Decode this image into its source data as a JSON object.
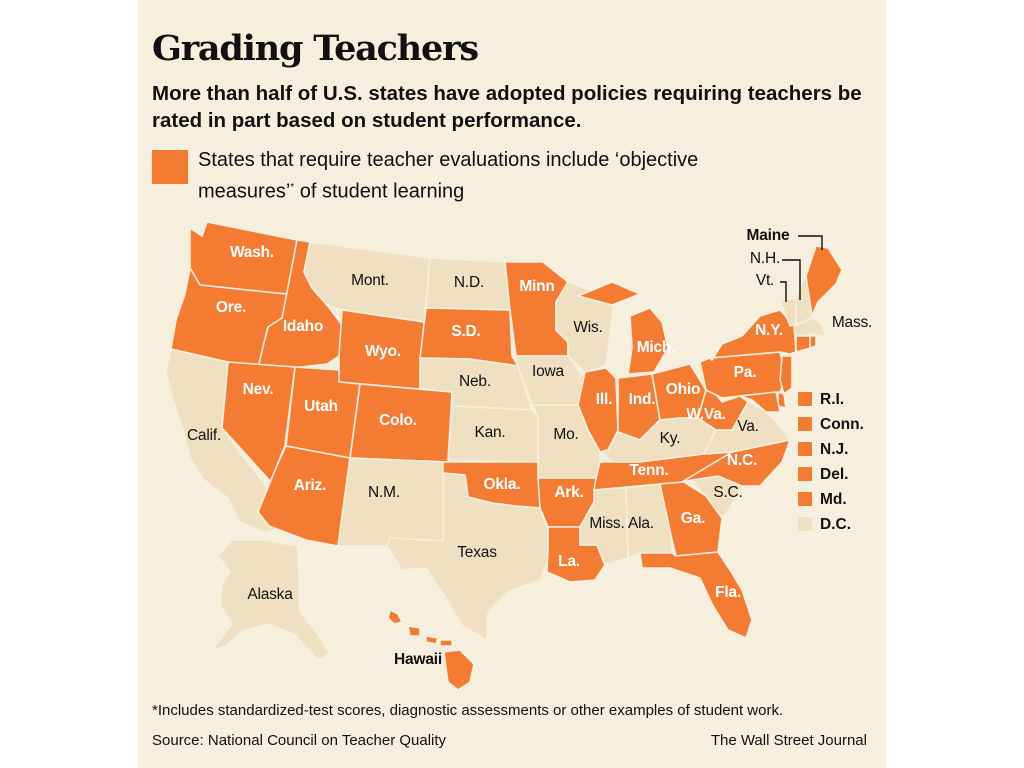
{
  "title": "Grading Teachers",
  "subtitle": "More than half of U.S. states have adopted policies requiring teachers be rated in part based on student performance.",
  "legend": {
    "label_before": "States that require teacher evaluations include ‘objective measures’",
    "marker": "*",
    "label_after": " of student learning",
    "color": "#f47b32"
  },
  "colors": {
    "required": "#f47b32",
    "not_required": "#efe0c2",
    "background": "#f7efdd"
  },
  "states": {
    "wa": {
      "label": "Wash.",
      "required": true
    },
    "or": {
      "label": "Ore.",
      "required": true
    },
    "id": {
      "label": "Idaho",
      "required": true
    },
    "ca": {
      "label": "Calif.",
      "required": false
    },
    "nv": {
      "label": "Nev.",
      "required": true
    },
    "ut": {
      "label": "Utah",
      "required": true
    },
    "az": {
      "label": "Ariz.",
      "required": true
    },
    "mt": {
      "label": "Mont.",
      "required": false
    },
    "wy": {
      "label": "Wyo.",
      "required": true
    },
    "co": {
      "label": "Colo.",
      "required": true
    },
    "nm": {
      "label": "N.M.",
      "required": false
    },
    "nd": {
      "label": "N.D.",
      "required": false
    },
    "sd": {
      "label": "S.D.",
      "required": true
    },
    "ne": {
      "label": "Neb.",
      "required": false
    },
    "ks": {
      "label": "Kan.",
      "required": false
    },
    "ok": {
      "label": "Okla.",
      "required": true
    },
    "tx": {
      "label": "Texas",
      "required": false
    },
    "mn": {
      "label": "Minn",
      "required": true
    },
    "ia": {
      "label": "Iowa",
      "required": false
    },
    "mo": {
      "label": "Mo.",
      "required": false
    },
    "ar": {
      "label": "Ark.",
      "required": true
    },
    "la": {
      "label": "La.",
      "required": true
    },
    "wi": {
      "label": "Wis.",
      "required": false
    },
    "il": {
      "label": "Ill.",
      "required": true
    },
    "mi": {
      "label": "Mich.",
      "required": true
    },
    "in": {
      "label": "Ind.",
      "required": true
    },
    "oh": {
      "label": "Ohio",
      "required": true
    },
    "ky": {
      "label": "Ky.",
      "required": false
    },
    "tn": {
      "label": "Tenn.",
      "required": true
    },
    "ms": {
      "label": "Miss.",
      "required": false
    },
    "al": {
      "label": "Ala.",
      "required": false
    },
    "ga": {
      "label": "Ga.",
      "required": true
    },
    "fl": {
      "label": "Fla.",
      "required": true
    },
    "sc": {
      "label": "S.C.",
      "required": false
    },
    "nc": {
      "label": "N.C.",
      "required": true
    },
    "va": {
      "label": "Va.",
      "required": false
    },
    "wv": {
      "label": "W.Va.",
      "required": true
    },
    "pa": {
      "label": "Pa.",
      "required": true
    },
    "ny": {
      "label": "N.Y.",
      "required": true
    },
    "vt": {
      "label": "Vt.",
      "required": false
    },
    "nh": {
      "label": "N.H.",
      "required": false
    },
    "me": {
      "label": "Maine",
      "required": true
    },
    "ma": {
      "label": "Mass.",
      "required": false
    },
    "ak": {
      "label": "Alaska",
      "required": false
    },
    "hi": {
      "label": "Hawaii",
      "required": true
    }
  },
  "small_states": [
    {
      "label": "R.I.",
      "required": true
    },
    {
      "label": "Conn.",
      "required": true
    },
    {
      "label": "N.J.",
      "required": true
    },
    {
      "label": "Del.",
      "required": true
    },
    {
      "label": "Md.",
      "required": true
    },
    {
      "label": "D.C.",
      "required": false
    }
  ],
  "footnote": "*Includes standardized-test scores, diagnostic assessments or other examples of student work.",
  "source": "Source: National Council on Teacher Quality",
  "credit": "The Wall Street Journal"
}
